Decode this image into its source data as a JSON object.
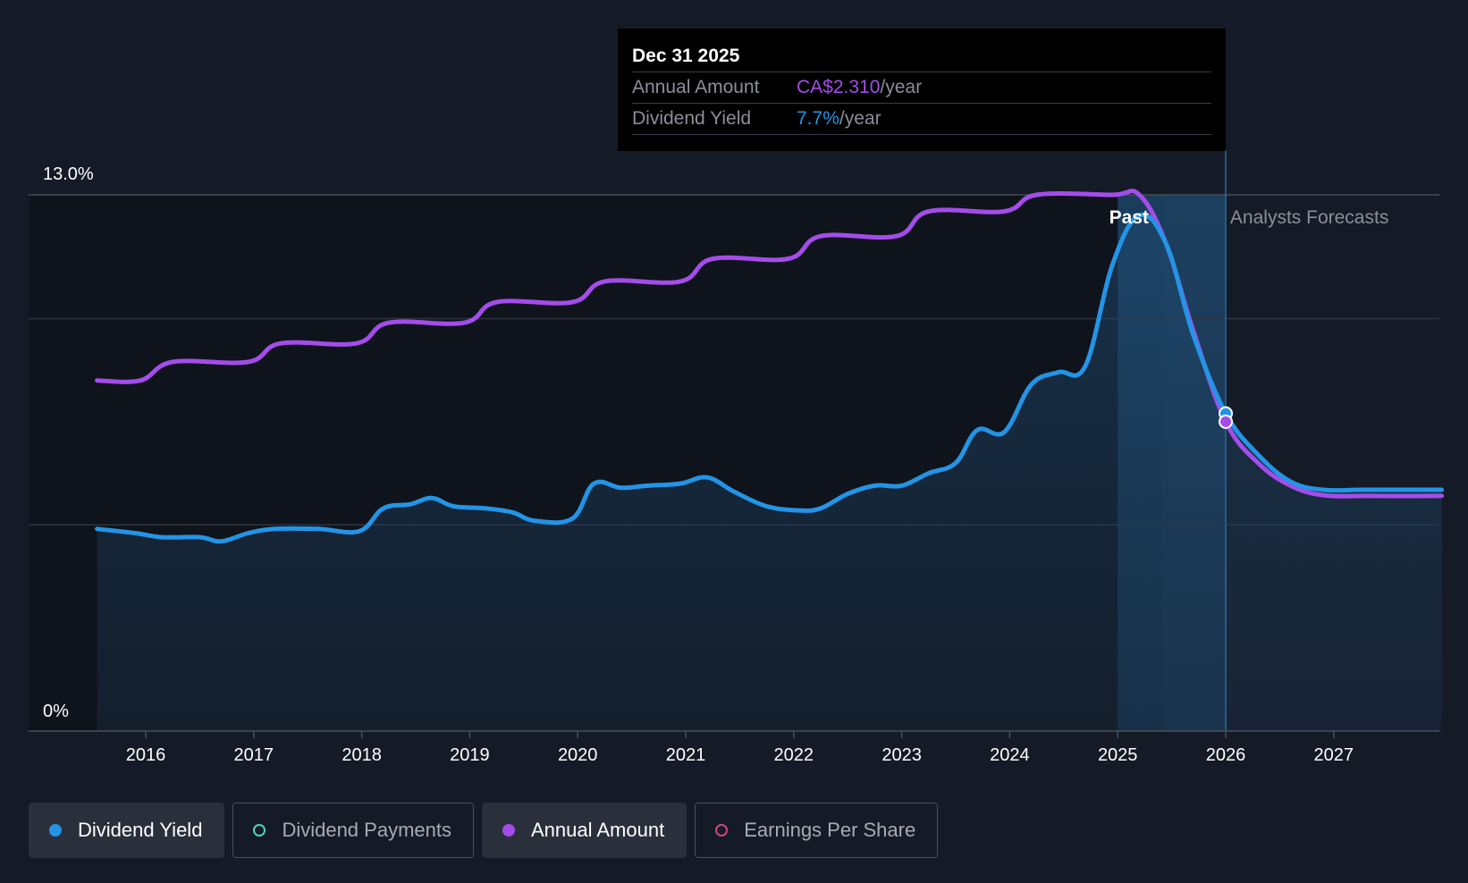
{
  "colors": {
    "background": "#151b26",
    "yield": "#2394e6",
    "annual": "#a44cea",
    "payments": "#4fd1c5",
    "eps": "#d0457e",
    "grid": "#2e3542",
    "text": "#ffffff",
    "muted": "#8a8f98"
  },
  "tooltip": {
    "date": "Dec 31 2025",
    "rows": [
      {
        "label": "Annual Amount",
        "value": "CA$2.310",
        "unit": "/year",
        "color": "#a44cea"
      },
      {
        "label": "Dividend Yield",
        "value": "7.7%",
        "unit": "/year",
        "color": "#2394e6"
      }
    ]
  },
  "legend": [
    {
      "label": "Dividend Yield",
      "active": true,
      "filled": true,
      "color": "#2394e6"
    },
    {
      "label": "Dividend Payments",
      "active": false,
      "filled": false,
      "color": "#4fd1c5"
    },
    {
      "label": "Annual Amount",
      "active": true,
      "filled": true,
      "color": "#a44cea"
    },
    {
      "label": "Earnings Per Share",
      "active": false,
      "filled": false,
      "color": "#d0457e"
    }
  ],
  "chart_data": {
    "type": "line",
    "y_top_label": "13.0%",
    "y_bottom_label": "0%",
    "ylim": [
      0,
      13
    ],
    "xlim": [
      2015.1,
      2028.0
    ],
    "x_ticks": [
      "2016",
      "2017",
      "2018",
      "2019",
      "2020",
      "2021",
      "2022",
      "2023",
      "2024",
      "2025",
      "2026",
      "2027"
    ],
    "past_label": "Past",
    "forecast_label": "Analysts Forecasts",
    "past_end_x": 2025.42,
    "cursor_x": 2026.0,
    "series": [
      {
        "name": "Dividend Yield",
        "key": "yield",
        "area": true,
        "points": [
          [
            2015.55,
            4.9
          ],
          [
            2015.9,
            4.8
          ],
          [
            2016.15,
            4.7
          ],
          [
            2016.5,
            4.7
          ],
          [
            2016.7,
            4.6
          ],
          [
            2016.95,
            4.8
          ],
          [
            2017.2,
            4.9
          ],
          [
            2017.6,
            4.9
          ],
          [
            2017.98,
            4.85
          ],
          [
            2018.2,
            5.4
          ],
          [
            2018.45,
            5.5
          ],
          [
            2018.65,
            5.65
          ],
          [
            2018.85,
            5.45
          ],
          [
            2019.15,
            5.4
          ],
          [
            2019.4,
            5.3
          ],
          [
            2019.6,
            5.1
          ],
          [
            2019.95,
            5.15
          ],
          [
            2020.15,
            6.0
          ],
          [
            2020.4,
            5.9
          ],
          [
            2020.65,
            5.95
          ],
          [
            2020.95,
            6.0
          ],
          [
            2021.2,
            6.15
          ],
          [
            2021.45,
            5.8
          ],
          [
            2021.75,
            5.45
          ],
          [
            2022.05,
            5.35
          ],
          [
            2022.25,
            5.4
          ],
          [
            2022.5,
            5.75
          ],
          [
            2022.75,
            5.95
          ],
          [
            2023.0,
            5.95
          ],
          [
            2023.25,
            6.25
          ],
          [
            2023.5,
            6.5
          ],
          [
            2023.7,
            7.3
          ],
          [
            2023.95,
            7.25
          ],
          [
            2024.2,
            8.4
          ],
          [
            2024.45,
            8.7
          ],
          [
            2024.7,
            8.85
          ],
          [
            2024.95,
            11.3
          ],
          [
            2025.2,
            12.5
          ],
          [
            2025.45,
            11.8
          ],
          [
            2025.7,
            9.6
          ],
          [
            2026.0,
            7.7
          ],
          [
            2026.3,
            6.7
          ],
          [
            2026.6,
            6.05
          ],
          [
            2026.9,
            5.85
          ],
          [
            2027.3,
            5.85
          ],
          [
            2028.0,
            5.85
          ]
        ]
      },
      {
        "name": "Annual Amount",
        "key": "annual",
        "area": false,
        "points": [
          [
            2015.55,
            8.5
          ],
          [
            2015.95,
            8.5
          ],
          [
            2016.25,
            8.95
          ],
          [
            2016.95,
            8.95
          ],
          [
            2017.25,
            9.4
          ],
          [
            2017.95,
            9.4
          ],
          [
            2018.25,
            9.9
          ],
          [
            2018.95,
            9.9
          ],
          [
            2019.25,
            10.4
          ],
          [
            2019.95,
            10.4
          ],
          [
            2020.25,
            10.9
          ],
          [
            2020.95,
            10.9
          ],
          [
            2021.25,
            11.45
          ],
          [
            2021.95,
            11.45
          ],
          [
            2022.25,
            12.0
          ],
          [
            2022.95,
            12.0
          ],
          [
            2023.25,
            12.6
          ],
          [
            2023.95,
            12.6
          ],
          [
            2024.25,
            13.0
          ],
          [
            2024.95,
            13.0
          ],
          [
            2025.2,
            13.0
          ],
          [
            2025.45,
            11.8
          ],
          [
            2025.7,
            9.7
          ],
          [
            2026.0,
            7.5
          ],
          [
            2026.3,
            6.5
          ],
          [
            2026.6,
            5.95
          ],
          [
            2026.9,
            5.72
          ],
          [
            2027.3,
            5.7
          ],
          [
            2028.0,
            5.7
          ]
        ]
      }
    ],
    "markers": [
      {
        "series": "yield",
        "x": 2026.0,
        "y": 7.7
      },
      {
        "series": "annual",
        "x": 2026.0,
        "y": 7.5
      }
    ]
  }
}
